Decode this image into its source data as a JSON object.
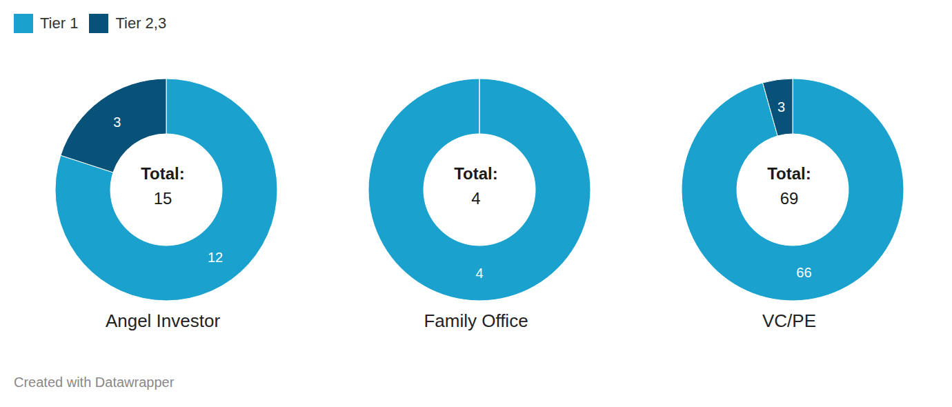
{
  "chart_data": [
    {
      "type": "pie",
      "title": "Angel Investor",
      "categories": [
        "Tier 1",
        "Tier 2,3"
      ],
      "values": [
        12,
        3
      ],
      "colors": [
        "#1aa1ce",
        "#08527a"
      ],
      "center_label": "Total:",
      "total": 15,
      "data_labels": true,
      "legend": "top-left"
    },
    {
      "type": "pie",
      "title": "Family Office",
      "categories": [
        "Tier 1"
      ],
      "values": [
        4
      ],
      "colors": [
        "#1aa1ce"
      ],
      "center_label": "Total:",
      "total": 4,
      "data_labels": true,
      "legend": "top-left"
    },
    {
      "type": "pie",
      "title": "VC/PE",
      "categories": [
        "Tier 1",
        "Tier 2,3"
      ],
      "values": [
        66,
        3
      ],
      "colors": [
        "#1aa1ce",
        "#08527a"
      ],
      "center_label": "Total:",
      "total": 69,
      "data_labels": true,
      "legend": "top-left"
    }
  ],
  "caption": "Created with Datawrapper"
}
